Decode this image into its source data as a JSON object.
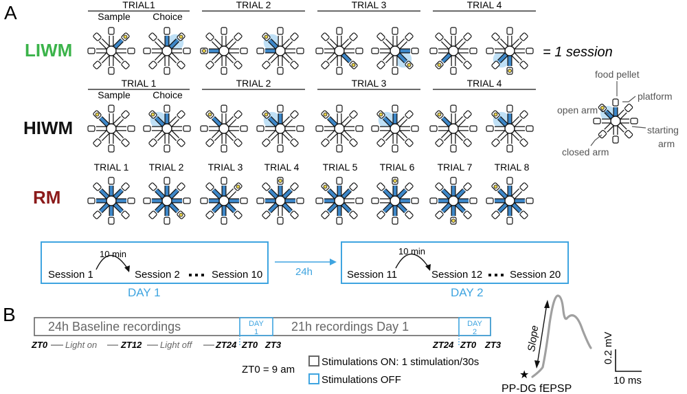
{
  "panel_a": {
    "label": "A",
    "liwm": {
      "name": "LIWM",
      "trials": [
        "TRIAL1",
        "TRIAL 2",
        "TRIAL 3",
        "TRIAL 4"
      ],
      "sample_label": "Sample",
      "choice_label": "Choice",
      "session_note": "= 1 session"
    },
    "hiwm": {
      "name": "HIWM",
      "trials": [
        "TRIAL 1",
        "TRIAL 2",
        "TRIAL 3",
        "TRIAL 4"
      ],
      "sample_label": "Sample",
      "choice_label": "Choice"
    },
    "rm": {
      "name": "RM",
      "trials": [
        "TRIAL 1",
        "TRIAL 2",
        "TRIAL 3",
        "TRIAL 4",
        "TRIAL 5",
        "TRIAL 6",
        "TRIAL 7",
        "TRIAL 8"
      ]
    },
    "legend": {
      "food_pellet": "food pellet",
      "platform": "platform",
      "open_arm": "open arm",
      "starting_arm_1": "starting",
      "starting_arm_2": "arm",
      "closed_arm": "closed arm"
    },
    "schedule": {
      "day1": {
        "s1": "Session 1",
        "s2": "Session 2",
        "s3": "Session 10",
        "interval": "10 min",
        "label": "DAY 1"
      },
      "gap": "24h",
      "day2": {
        "s1": "Session 11",
        "s2": "Session 12",
        "s3": "Session 20",
        "interval": "10 min",
        "label": "DAY 2"
      }
    }
  },
  "panel_b": {
    "label": "B",
    "timeline": {
      "baseline": "24h  Baseline recordings",
      "day1_box_1": "DAY",
      "day1_box_2": "1",
      "recordings": "21h recordings Day 1",
      "day2_box_1": "DAY",
      "day2_box_2": "2"
    },
    "ticks": {
      "zt0": "ZT0",
      "light_on": "Light on",
      "zt12": "ZT12",
      "light_off": "Light off",
      "zt24": "ZT24",
      "zt0b": "ZT0",
      "zt3": "ZT3",
      "zt24b": "ZT24",
      "zt0c": "ZT0",
      "zt3b": "ZT3"
    },
    "zt_note": "ZT0 = 9 am",
    "key_on": "Stimulations ON: 1 stimulation/30s",
    "key_off": "Stimulations OFF",
    "trace": {
      "slope": "Slope",
      "name": "PP-DG fEPSP",
      "scale_v": "0.2 mV",
      "scale_t": "10 ms",
      "star": "★"
    }
  },
  "colors": {
    "liwm": "#3bb34a",
    "hiwm": "#111111",
    "rm": "#8b1a1a",
    "accent": "#3ea4e0",
    "arm_blue": "#3d87c8",
    "timeline_grey": "#666666",
    "trace_grey": "#a0a0a0"
  }
}
